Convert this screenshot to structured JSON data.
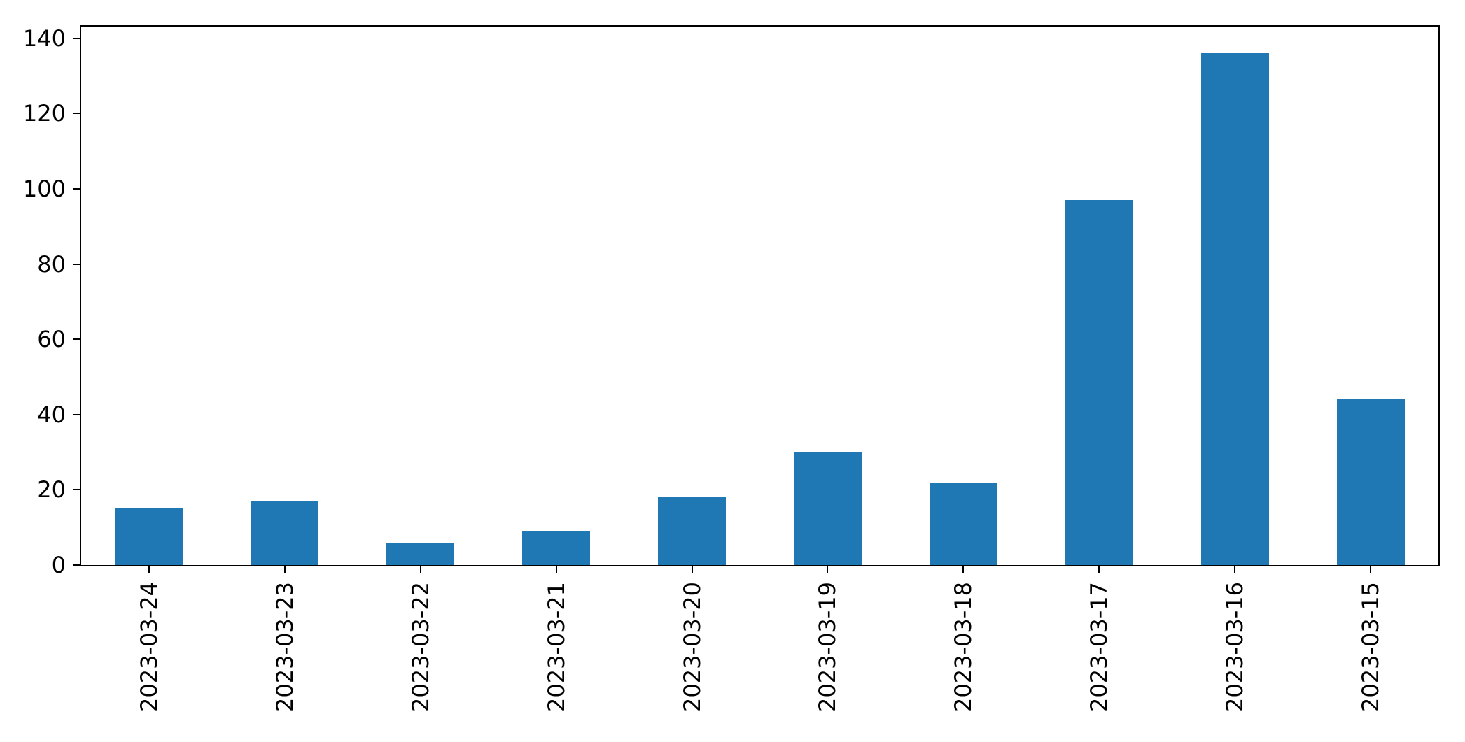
{
  "chart_data": {
    "type": "bar",
    "title": "",
    "xlabel": "",
    "ylabel": "",
    "categories": [
      "2023-03-24",
      "2023-03-23",
      "2023-03-22",
      "2023-03-21",
      "2023-03-20",
      "2023-03-19",
      "2023-03-18",
      "2023-03-17",
      "2023-03-16",
      "2023-03-15"
    ],
    "values": [
      15,
      17,
      6,
      9,
      18,
      30,
      22,
      97,
      136,
      44
    ],
    "yticks": [
      0,
      20,
      40,
      60,
      80,
      100,
      120,
      140
    ],
    "ylim": [
      0,
      143.3
    ],
    "x_tick_rotation": 90,
    "grid": false,
    "legend_position": "none",
    "bar_color": "#1f77b4",
    "background_color": "#ffffff",
    "axis_color": "#000000"
  }
}
